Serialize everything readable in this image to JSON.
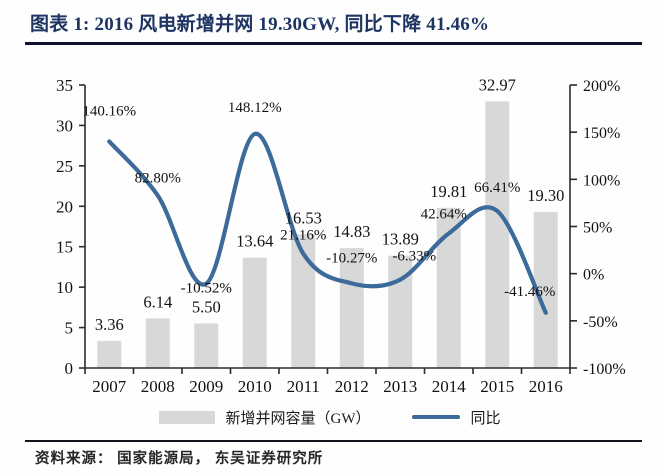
{
  "title": "图表  1: 2016 风电新增并网 19.30GW, 同比下降 41.46%",
  "source": "资料来源： 国家能源局， 东吴证券研究所",
  "legend": {
    "bars_label": "新增并网容量（GW）",
    "line_label": "同比"
  },
  "colors": {
    "title": "#1e3563",
    "bar": "#d8d8d8",
    "line": "#3c6a9a",
    "axis": "#2b2b2b",
    "label": "#121212"
  },
  "chart_data": {
    "type": "bar",
    "subtype": "combo-bar-line",
    "categories": [
      "2007",
      "2008",
      "2009",
      "2010",
      "2011",
      "2012",
      "2013",
      "2014",
      "2015",
      "2016"
    ],
    "series": [
      {
        "name": "新增并网容量（GW）",
        "type": "bar",
        "axis": "left",
        "values": [
          3.36,
          6.14,
          5.5,
          13.64,
          16.53,
          14.83,
          13.89,
          19.81,
          32.97,
          19.3
        ],
        "labels": [
          "3.36",
          "6.14",
          "5.50",
          "13.64",
          "16.53",
          "14.83",
          "13.89",
          "19.81",
          "32.97",
          "19.30"
        ]
      },
      {
        "name": "同比",
        "type": "line",
        "axis": "right",
        "values": [
          140.16,
          82.8,
          -10.52,
          148.12,
          21.16,
          -10.27,
          -6.33,
          42.64,
          66.41,
          -41.46
        ],
        "labels": [
          "140.16%",
          "82.80%",
          "-10.52%",
          "148.12%",
          "21.16%",
          "-10.27%",
          "-6.33%",
          "42.64%",
          "66.41%",
          "-41.46%"
        ]
      }
    ],
    "left_axis": {
      "min": 0,
      "max": 35,
      "step": 5,
      "ticks": [
        "0",
        "5",
        "10",
        "15",
        "20",
        "25",
        "30",
        "35"
      ]
    },
    "right_axis": {
      "min": -100,
      "max": 200,
      "step": 50,
      "ticks": [
        "-100%",
        "-50%",
        "0%",
        "50%",
        "100%",
        "150%",
        "200%"
      ]
    },
    "grid": false,
    "legend_position": "bottom"
  }
}
